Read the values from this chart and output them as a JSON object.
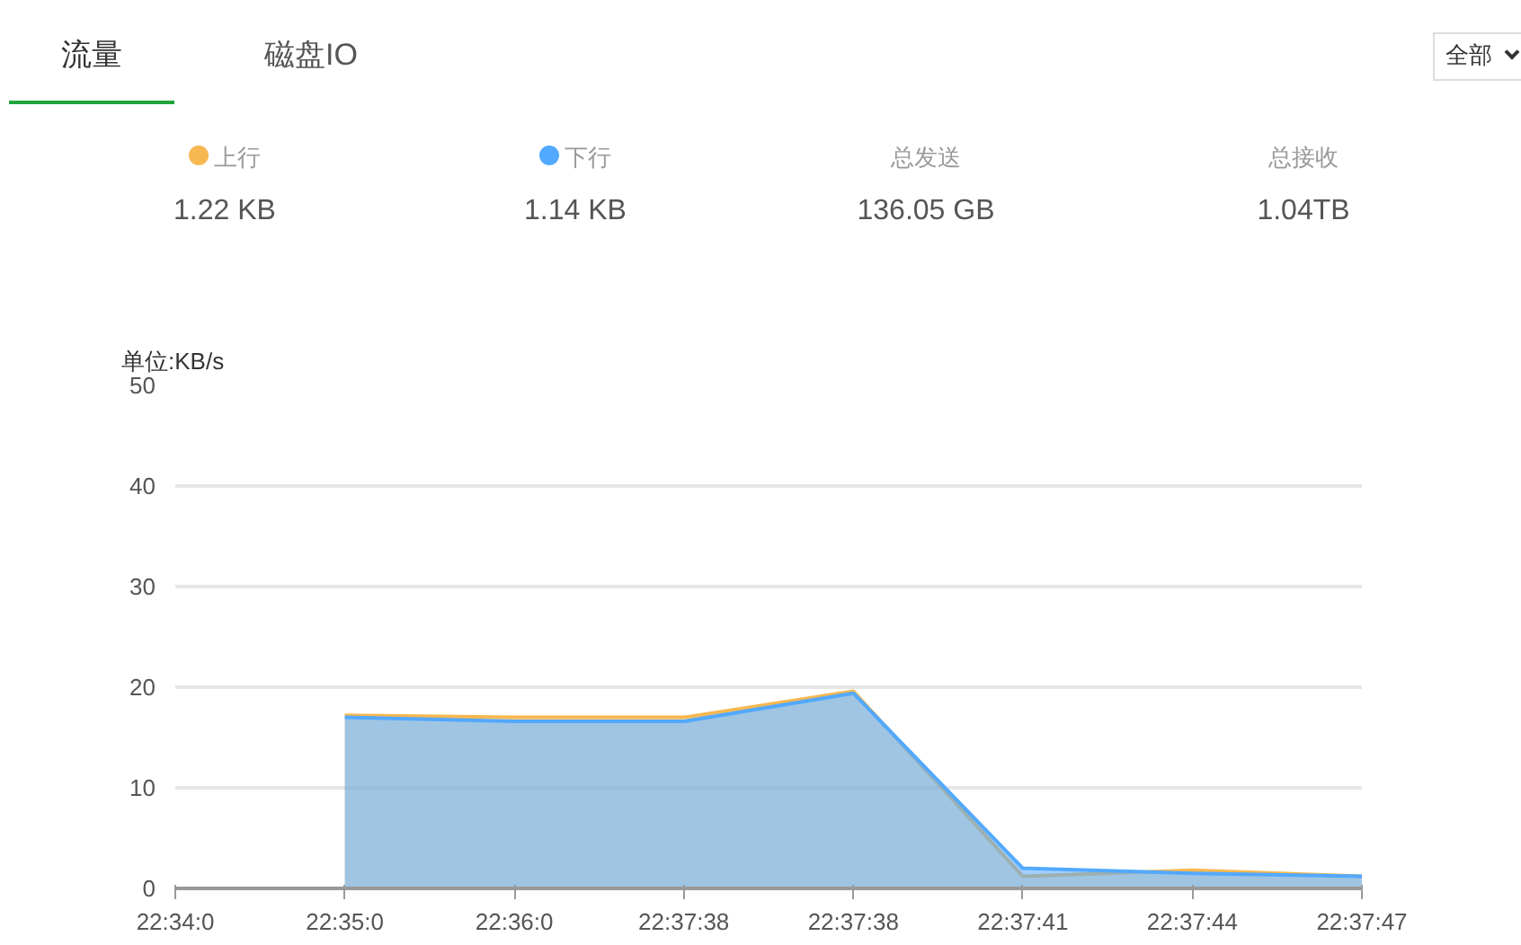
{
  "chart_data": {
    "type": "area",
    "ylabel": "单位:KB/s",
    "annotations": [
      "流量",
      "磁盘IO",
      "全部",
      "1.22 KB",
      "1.14 KB",
      "总发送",
      "136.05 GB",
      "总接收",
      "1.04TB"
    ],
    "categories": [
      "22:34:0",
      "22:35:0",
      "22:36:0",
      "22:37:38",
      "22:37:38",
      "22:37:41",
      "22:37:44",
      "22:37:47"
    ],
    "ylim": [
      0,
      50
    ],
    "yticks": [
      0,
      10,
      20,
      30,
      40,
      50
    ],
    "grid": "y",
    "legend": "top",
    "series": [
      {
        "name": "上行",
        "color": "#f7b851",
        "values": [
          null,
          17.2,
          17.0,
          17.0,
          19.6,
          1.2,
          1.8,
          1.2
        ]
      },
      {
        "name": "下行",
        "color": "#52a9ff",
        "values": [
          null,
          17.0,
          16.6,
          16.6,
          19.4,
          2.0,
          1.5,
          1.2
        ]
      }
    ]
  }
}
